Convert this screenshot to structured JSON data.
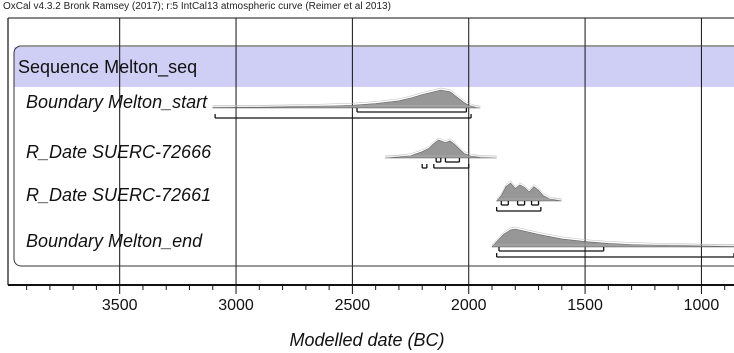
{
  "header": "OxCal v4.3.2 Bronk Ramsey (2017); r:5 IntCal13 atmospheric curve (Reimer et al 2013)",
  "chart_data": {
    "type": "oxcal-multiplot",
    "xlabel": "Modelled date (BC)",
    "xlim": [
      3980,
      860
    ],
    "ticks": [
      3500,
      3000,
      2500,
      2000,
      1500,
      1000
    ],
    "tick_labels": [
      "3500",
      "3000",
      "2500",
      "2000",
      "1500",
      "1000"
    ],
    "grid": "vertical",
    "sequence": {
      "name": "Sequence Melton_seq",
      "fill": "#cfcff5"
    },
    "rows": [
      {
        "label": "Boundary Melton_start",
        "kind": "boundary",
        "density": [
          [
            3100,
            0.02
          ],
          [
            2900,
            0.04
          ],
          [
            2700,
            0.08
          ],
          [
            2500,
            0.15
          ],
          [
            2400,
            0.25
          ],
          [
            2300,
            0.4
          ],
          [
            2250,
            0.55
          ],
          [
            2200,
            0.75
          ],
          [
            2150,
            0.9
          ],
          [
            2120,
            1.0
          ],
          [
            2080,
            0.9
          ],
          [
            2050,
            0.6
          ],
          [
            2020,
            0.3
          ],
          [
            2000,
            0.15
          ],
          [
            1970,
            0.03
          ],
          [
            1950,
            0
          ]
        ],
        "range_68": [
          [
            2480,
            2010
          ]
        ],
        "range_95": [
          [
            3090,
            1990
          ]
        ]
      },
      {
        "label": "R_Date SUERC-72666",
        "kind": "date",
        "density": [
          [
            2360,
            0.0
          ],
          [
            2300,
            0.05
          ],
          [
            2250,
            0.12
          ],
          [
            2200,
            0.35
          ],
          [
            2170,
            0.55
          ],
          [
            2150,
            0.8
          ],
          [
            2130,
            1.0
          ],
          [
            2100,
            0.85
          ],
          [
            2080,
            0.95
          ],
          [
            2060,
            0.75
          ],
          [
            2040,
            0.5
          ],
          [
            2020,
            0.25
          ],
          [
            1990,
            0.1
          ],
          [
            1950,
            0.03
          ],
          [
            1880,
            0
          ]
        ],
        "range_68": [
          [
            2140,
            2120
          ],
          [
            2100,
            2040
          ]
        ],
        "range_95": [
          [
            2200,
            2180
          ],
          [
            2150,
            2000
          ]
        ]
      },
      {
        "label": "R_Date SUERC-72661",
        "kind": "date",
        "density": [
          [
            1880,
            0.0
          ],
          [
            1860,
            0.3
          ],
          [
            1840,
            0.8
          ],
          [
            1820,
            1.0
          ],
          [
            1800,
            0.7
          ],
          [
            1780,
            0.9
          ],
          [
            1760,
            0.75
          ],
          [
            1740,
            0.5
          ],
          [
            1720,
            0.8
          ],
          [
            1700,
            0.6
          ],
          [
            1680,
            0.3
          ],
          [
            1650,
            0.1
          ],
          [
            1600,
            0
          ]
        ],
        "range_68": [
          [
            1860,
            1830
          ],
          [
            1790,
            1760
          ],
          [
            1730,
            1700
          ]
        ],
        "range_95": [
          [
            1880,
            1690
          ]
        ]
      },
      {
        "label": "Boundary Melton_end",
        "kind": "boundary",
        "density": [
          [
            1900,
            0.0
          ],
          [
            1880,
            0.3
          ],
          [
            1850,
            0.7
          ],
          [
            1820,
            0.95
          ],
          [
            1800,
            1.0
          ],
          [
            1750,
            0.85
          ],
          [
            1700,
            0.7
          ],
          [
            1600,
            0.45
          ],
          [
            1500,
            0.3
          ],
          [
            1400,
            0.2
          ],
          [
            1300,
            0.14
          ],
          [
            1200,
            0.1
          ],
          [
            1100,
            0.07
          ],
          [
            1000,
            0.05
          ],
          [
            860,
            0.03
          ]
        ],
        "range_68": [
          [
            1870,
            1420
          ]
        ],
        "range_95": [
          [
            1880,
            860
          ]
        ]
      }
    ]
  }
}
